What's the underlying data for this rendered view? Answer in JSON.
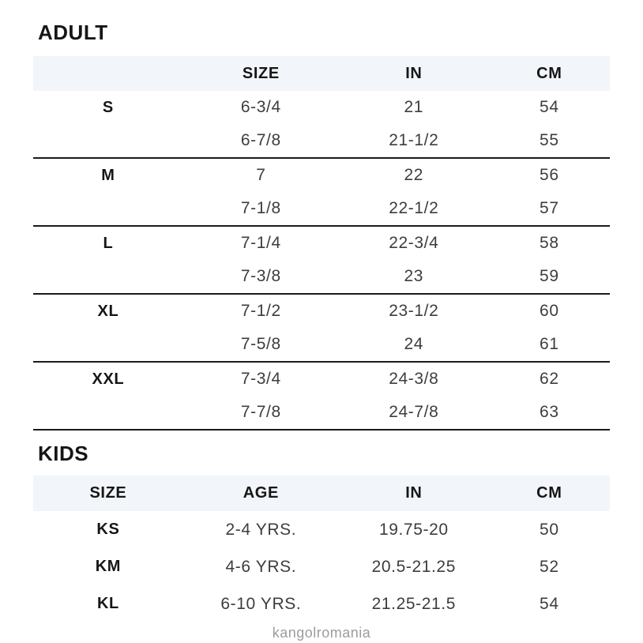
{
  "colors": {
    "header_row_bg": "#f2f5f9",
    "divider": "#1a1a1a",
    "heading_text": "#161616",
    "value_text": "#3d3d3d",
    "watermark_text": "#9c9c9c",
    "page_bg": "#ffffff"
  },
  "adult": {
    "title": "ADULT",
    "columns": [
      "",
      "SIZE",
      "IN",
      "CM"
    ],
    "groups": [
      {
        "label": "S",
        "rows": [
          [
            "6-3/4",
            "21",
            "54"
          ],
          [
            "6-7/8",
            "21-1/2",
            "55"
          ]
        ]
      },
      {
        "label": "M",
        "rows": [
          [
            "7",
            "22",
            "56"
          ],
          [
            "7-1/8",
            "22-1/2",
            "57"
          ]
        ]
      },
      {
        "label": "L",
        "rows": [
          [
            "7-1/4",
            "22-3/4",
            "58"
          ],
          [
            "7-3/8",
            "23",
            "59"
          ]
        ]
      },
      {
        "label": "XL",
        "rows": [
          [
            "7-1/2",
            "23-1/2",
            "60"
          ],
          [
            "7-5/8",
            "24",
            "61"
          ]
        ]
      },
      {
        "label": "XXL",
        "rows": [
          [
            "7-3/4",
            "24-3/8",
            "62"
          ],
          [
            "7-7/8",
            "24-7/8",
            "63"
          ]
        ]
      }
    ]
  },
  "kids": {
    "title": "KIDS",
    "columns": [
      "SIZE",
      "AGE",
      "IN",
      "CM"
    ],
    "rows": [
      {
        "size": "KS",
        "age": "2-4 YRS.",
        "in": "19.75-20",
        "cm": "50"
      },
      {
        "size": "KM",
        "age": "4-6 YRS.",
        "in": "20.5-21.25",
        "cm": "52"
      },
      {
        "size": "KL",
        "age": "6-10 YRS.",
        "in": "21.25-21.5",
        "cm": "54"
      }
    ]
  },
  "footer": {
    "watermark": "kangolromania"
  }
}
